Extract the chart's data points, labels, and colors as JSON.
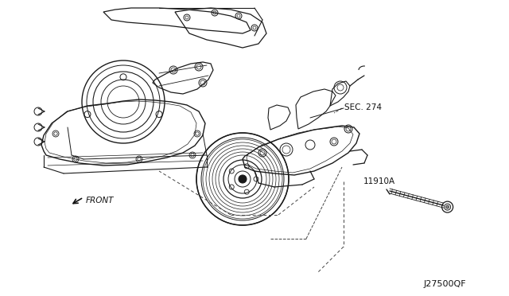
{
  "background_color": "#ffffff",
  "line_color": "#1a1a1a",
  "dashed_color": "#444444",
  "text_color": "#111111",
  "label_sec274": "SEC. 274",
  "label_11910A": "11910A",
  "label_front": "FRONT",
  "label_code": "J27500QF",
  "fig_width": 6.4,
  "fig_height": 3.72,
  "dpi": 100
}
